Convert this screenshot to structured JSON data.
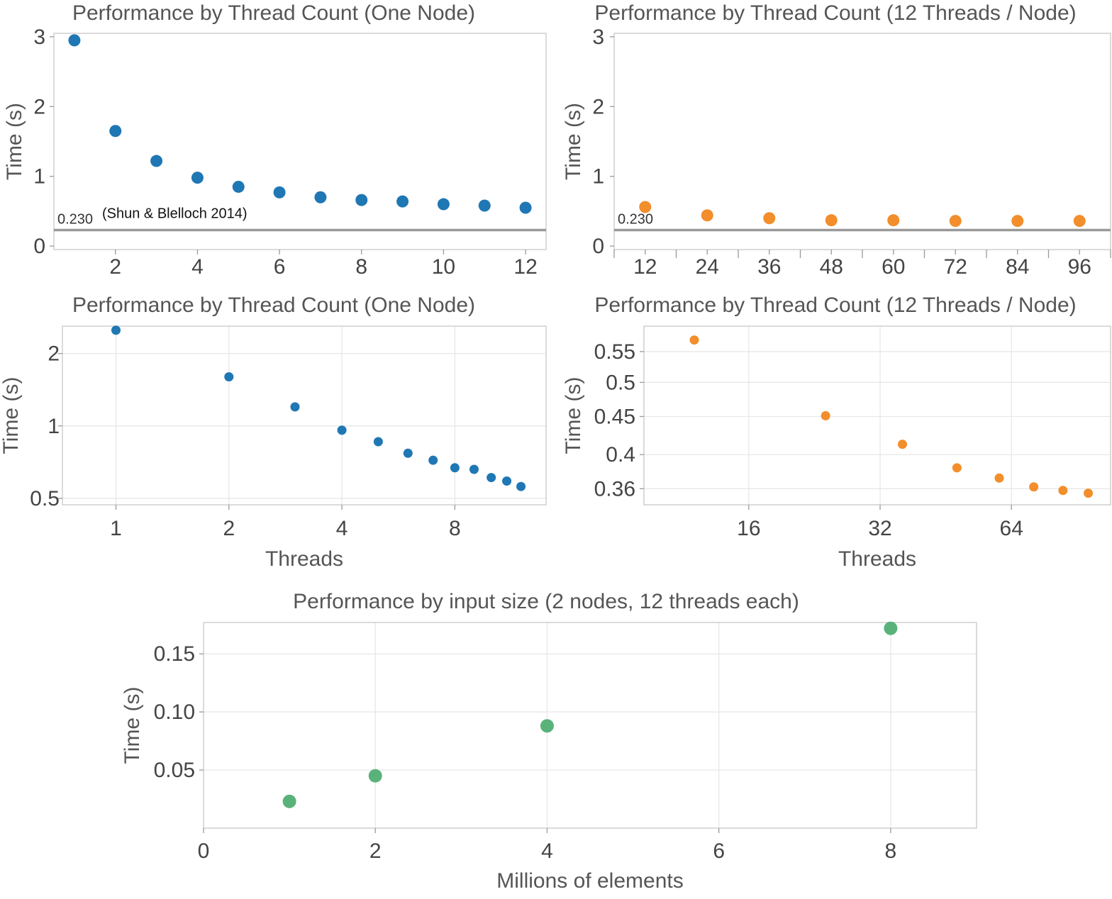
{
  "colors": {
    "blue": "#1f77b4",
    "orange": "#f28e2b",
    "green": "#59b27a",
    "frame": "#cfcfcf",
    "grid": "#e6e6e6",
    "refline": "#999999"
  },
  "chart_data": [
    {
      "id": "c1",
      "type": "scatter",
      "title": "Performance by Thread Count (One Node)",
      "xlabel": "",
      "ylabel": "Time (s)",
      "xlim": [
        0.5,
        12.5
      ],
      "ylim": [
        -0.05,
        3.05
      ],
      "xticks": [
        2,
        4,
        6,
        8,
        10,
        12
      ],
      "xtick_labels": [
        "2",
        "4",
        "6",
        "8",
        "10",
        "12"
      ],
      "yticks": [
        0,
        1,
        2,
        3
      ],
      "ytick_labels": [
        "0",
        "1",
        "2",
        "3"
      ],
      "grid": false,
      "reference_line": {
        "value": 0.23,
        "label": "0.230",
        "annotation": "(Shun & Blelloch 2014)"
      },
      "series": [
        {
          "color": "blue",
          "x": [
            1,
            2,
            3,
            4,
            5,
            6,
            7,
            8,
            9,
            10,
            11,
            12
          ],
          "y": [
            2.95,
            1.65,
            1.22,
            0.98,
            0.85,
            0.77,
            0.7,
            0.66,
            0.64,
            0.6,
            0.58,
            0.55
          ]
        }
      ]
    },
    {
      "id": "c2",
      "type": "scatter",
      "title": "Performance by Thread Count (12 Threads / Node)",
      "xlabel": "",
      "ylabel": "Time (s)",
      "xlim": [
        6,
        102
      ],
      "ylim": [
        -0.05,
        3.05
      ],
      "xticks": [
        12,
        24,
        36,
        48,
        60,
        72,
        84,
        96
      ],
      "xtick_labels": [
        "12",
        "24",
        "36",
        "48",
        "60",
        "72",
        "84",
        "96"
      ],
      "yticks": [
        0,
        1,
        2,
        3
      ],
      "ytick_labels": [
        "0",
        "1",
        "2",
        "3"
      ],
      "grid": false,
      "reference_line": {
        "value": 0.23,
        "label": "0.230"
      },
      "series": [
        {
          "color": "orange",
          "x": [
            12,
            24,
            36,
            48,
            60,
            72,
            84,
            96
          ],
          "y": [
            0.56,
            0.44,
            0.4,
            0.37,
            0.37,
            0.36,
            0.36,
            0.36
          ]
        }
      ]
    },
    {
      "id": "c3",
      "type": "scatter",
      "title": "Performance by Thread Count (One Node)",
      "xlabel": "Threads",
      "ylabel": "Time (s)",
      "xscale": "log",
      "yscale": "log",
      "xlim": [
        0.72,
        14
      ],
      "ylim": [
        0.47,
        2.6
      ],
      "xticks": [
        1,
        2,
        4,
        8
      ],
      "xtick_labels": [
        "1",
        "2",
        "4",
        "8"
      ],
      "yticks": [
        0.5,
        1,
        2
      ],
      "ytick_labels": [
        "0.5",
        "1",
        "2"
      ],
      "grid": true,
      "series": [
        {
          "color": "blue",
          "x": [
            1,
            2,
            3,
            4,
            5,
            6,
            7,
            8,
            9,
            10,
            11,
            12
          ],
          "y": [
            2.5,
            1.6,
            1.2,
            0.96,
            0.86,
            0.77,
            0.72,
            0.67,
            0.66,
            0.61,
            0.59,
            0.56
          ]
        }
      ]
    },
    {
      "id": "c4",
      "type": "scatter",
      "title": "Performance by Thread Count (12 Threads / Node)",
      "xlabel": "Threads",
      "ylabel": "Time (s)",
      "xscale": "log",
      "yscale": "log",
      "xlim": [
        9.2,
        108
      ],
      "ylim": [
        0.3425,
        0.595
      ],
      "xticks": [
        16,
        32,
        64
      ],
      "xtick_labels": [
        "16",
        "32",
        "64"
      ],
      "yticks": [
        0.36,
        0.4,
        0.45,
        0.5,
        0.55
      ],
      "ytick_labels": [
        "0.36",
        "0.4",
        "0.45",
        "0.5",
        "0.55"
      ],
      "grid": true,
      "series": [
        {
          "color": "orange",
          "x": [
            12,
            24,
            36,
            48,
            60,
            72,
            84,
            96
          ],
          "y": [
            0.57,
            0.451,
            0.413,
            0.384,
            0.372,
            0.362,
            0.358,
            0.355
          ]
        }
      ]
    },
    {
      "id": "c5",
      "type": "scatter",
      "title": "Performance by input size (2 nodes, 12 threads each)",
      "xlabel": "Millions of elements",
      "ylabel": "Time (s)",
      "xlim": [
        0,
        9
      ],
      "ylim": [
        0,
        0.177
      ],
      "xticks": [
        0,
        2,
        4,
        6,
        8
      ],
      "xtick_labels": [
        "0",
        "2",
        "4",
        "6",
        "8"
      ],
      "yticks": [
        0.05,
        0.1,
        0.15
      ],
      "ytick_labels": [
        "0.05",
        "0.10",
        "0.15"
      ],
      "grid": true,
      "series": [
        {
          "color": "green",
          "x": [
            1,
            2,
            4,
            8
          ],
          "y": [
            0.023,
            0.045,
            0.088,
            0.172
          ]
        }
      ]
    }
  ]
}
